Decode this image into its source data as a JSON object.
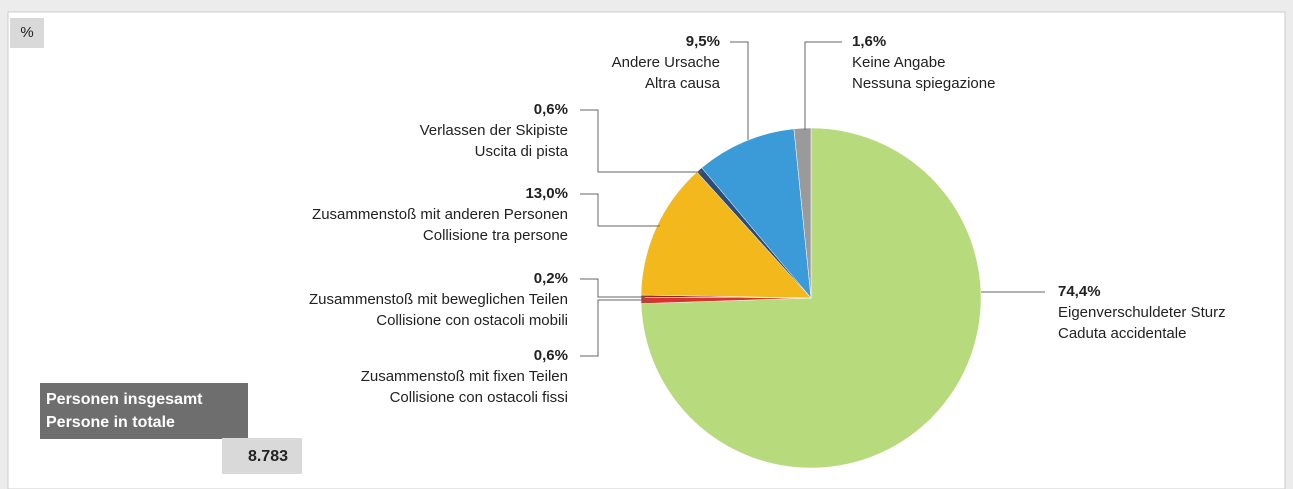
{
  "chart_data": {
    "type": "pie",
    "unit_label": "%",
    "categories": [
      "Eigenverschuldeter Sturz",
      "Zusammenstoß mit fixen Teilen",
      "Zusammenstoß mit beweglichen Teilen",
      "Zusammenstoß mit anderen Personen",
      "Verlassen der Skipiste",
      "Andere Ursache",
      "Keine Angabe"
    ],
    "translations": [
      "Caduta accidentale",
      "Collisione con ostacoli fissi",
      "Collisione con ostacoli mobili",
      "Collisione tra persone",
      "Uscita di pista",
      "Altra causa",
      "Nessuna spiegazione"
    ],
    "values": [
      74.4,
      0.6,
      0.2,
      13.0,
      0.6,
      9.5,
      1.6
    ],
    "value_labels": [
      "74,4%",
      "0,6%",
      "0,2%",
      "13,0%",
      "0,6%",
      "9,5%",
      "1,6%"
    ],
    "colors": [
      "#b6da7c",
      "#d8332b",
      "#8e2a2a",
      "#f2b81c",
      "#2c4d78",
      "#3a9bd8",
      "#9a9a9a"
    ],
    "total_label": [
      "Personen insgesamt",
      "Persone in totale"
    ],
    "total": {
      "value": 8783,
      "label": "8.783"
    }
  }
}
